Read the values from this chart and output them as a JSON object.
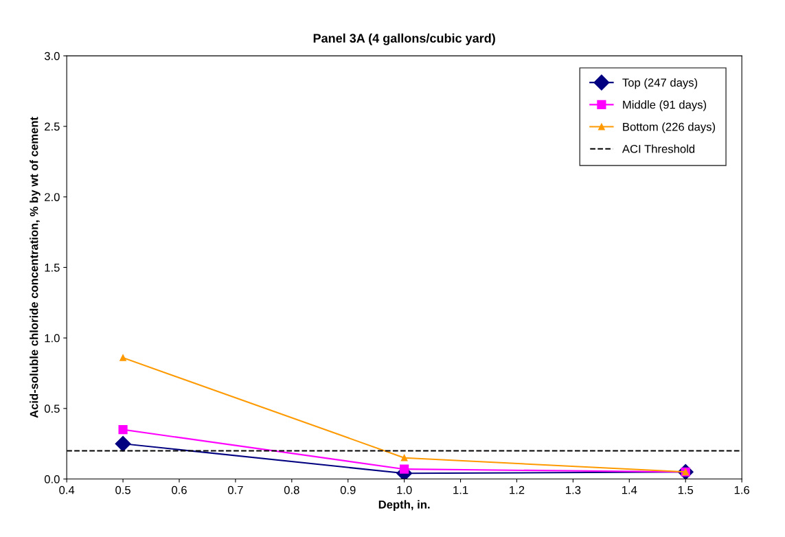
{
  "chart_data": {
    "type": "line",
    "title": "Panel 3A (4 gallons/cubic yard)",
    "xlabel": "Depth, in.",
    "ylabel": "Acid-soluble chloride concentration, % by wt of cement",
    "x": [
      0.5,
      1.0,
      1.5
    ],
    "series": [
      {
        "name": "Top (247 days)",
        "color": "#000080",
        "marker": "diamond",
        "values": [
          0.25,
          0.04,
          0.05
        ]
      },
      {
        "name": "Middle (91 days)",
        "color": "#ff00ff",
        "marker": "square",
        "values": [
          0.35,
          0.07,
          0.05
        ]
      },
      {
        "name": "Bottom (226 days)",
        "color": "#ff9900",
        "marker": "triangle",
        "values": [
          0.86,
          0.15,
          0.05
        ]
      }
    ],
    "ref_lines": [
      {
        "axis": "y",
        "value": 0.2,
        "label": "ACI Threshold",
        "color": "#000000",
        "line_style": "dashed"
      }
    ],
    "xlim": [
      0.4,
      1.6
    ],
    "xticks": [
      0.4,
      0.5,
      0.6,
      0.7,
      0.8,
      0.9,
      {
        "value": 1.0,
        "label": "1.0"
      },
      1.1,
      1.2,
      1.3,
      1.4,
      1.5,
      1.6
    ],
    "ylim": [
      0.0,
      3.0
    ],
    "yticks": [
      {
        "value": 0.0,
        "label": "0.0"
      },
      {
        "value": 0.5,
        "label": "0.5"
      },
      {
        "value": 1.0,
        "label": "1.0"
      },
      {
        "value": 1.5,
        "label": "1.5"
      },
      {
        "value": 2.0,
        "label": "2.0"
      },
      {
        "value": 2.5,
        "label": "2.5"
      },
      {
        "value": 3.0,
        "label": "3.0"
      }
    ],
    "grid": false,
    "legend": "top right",
    "line_style": "solid"
  }
}
